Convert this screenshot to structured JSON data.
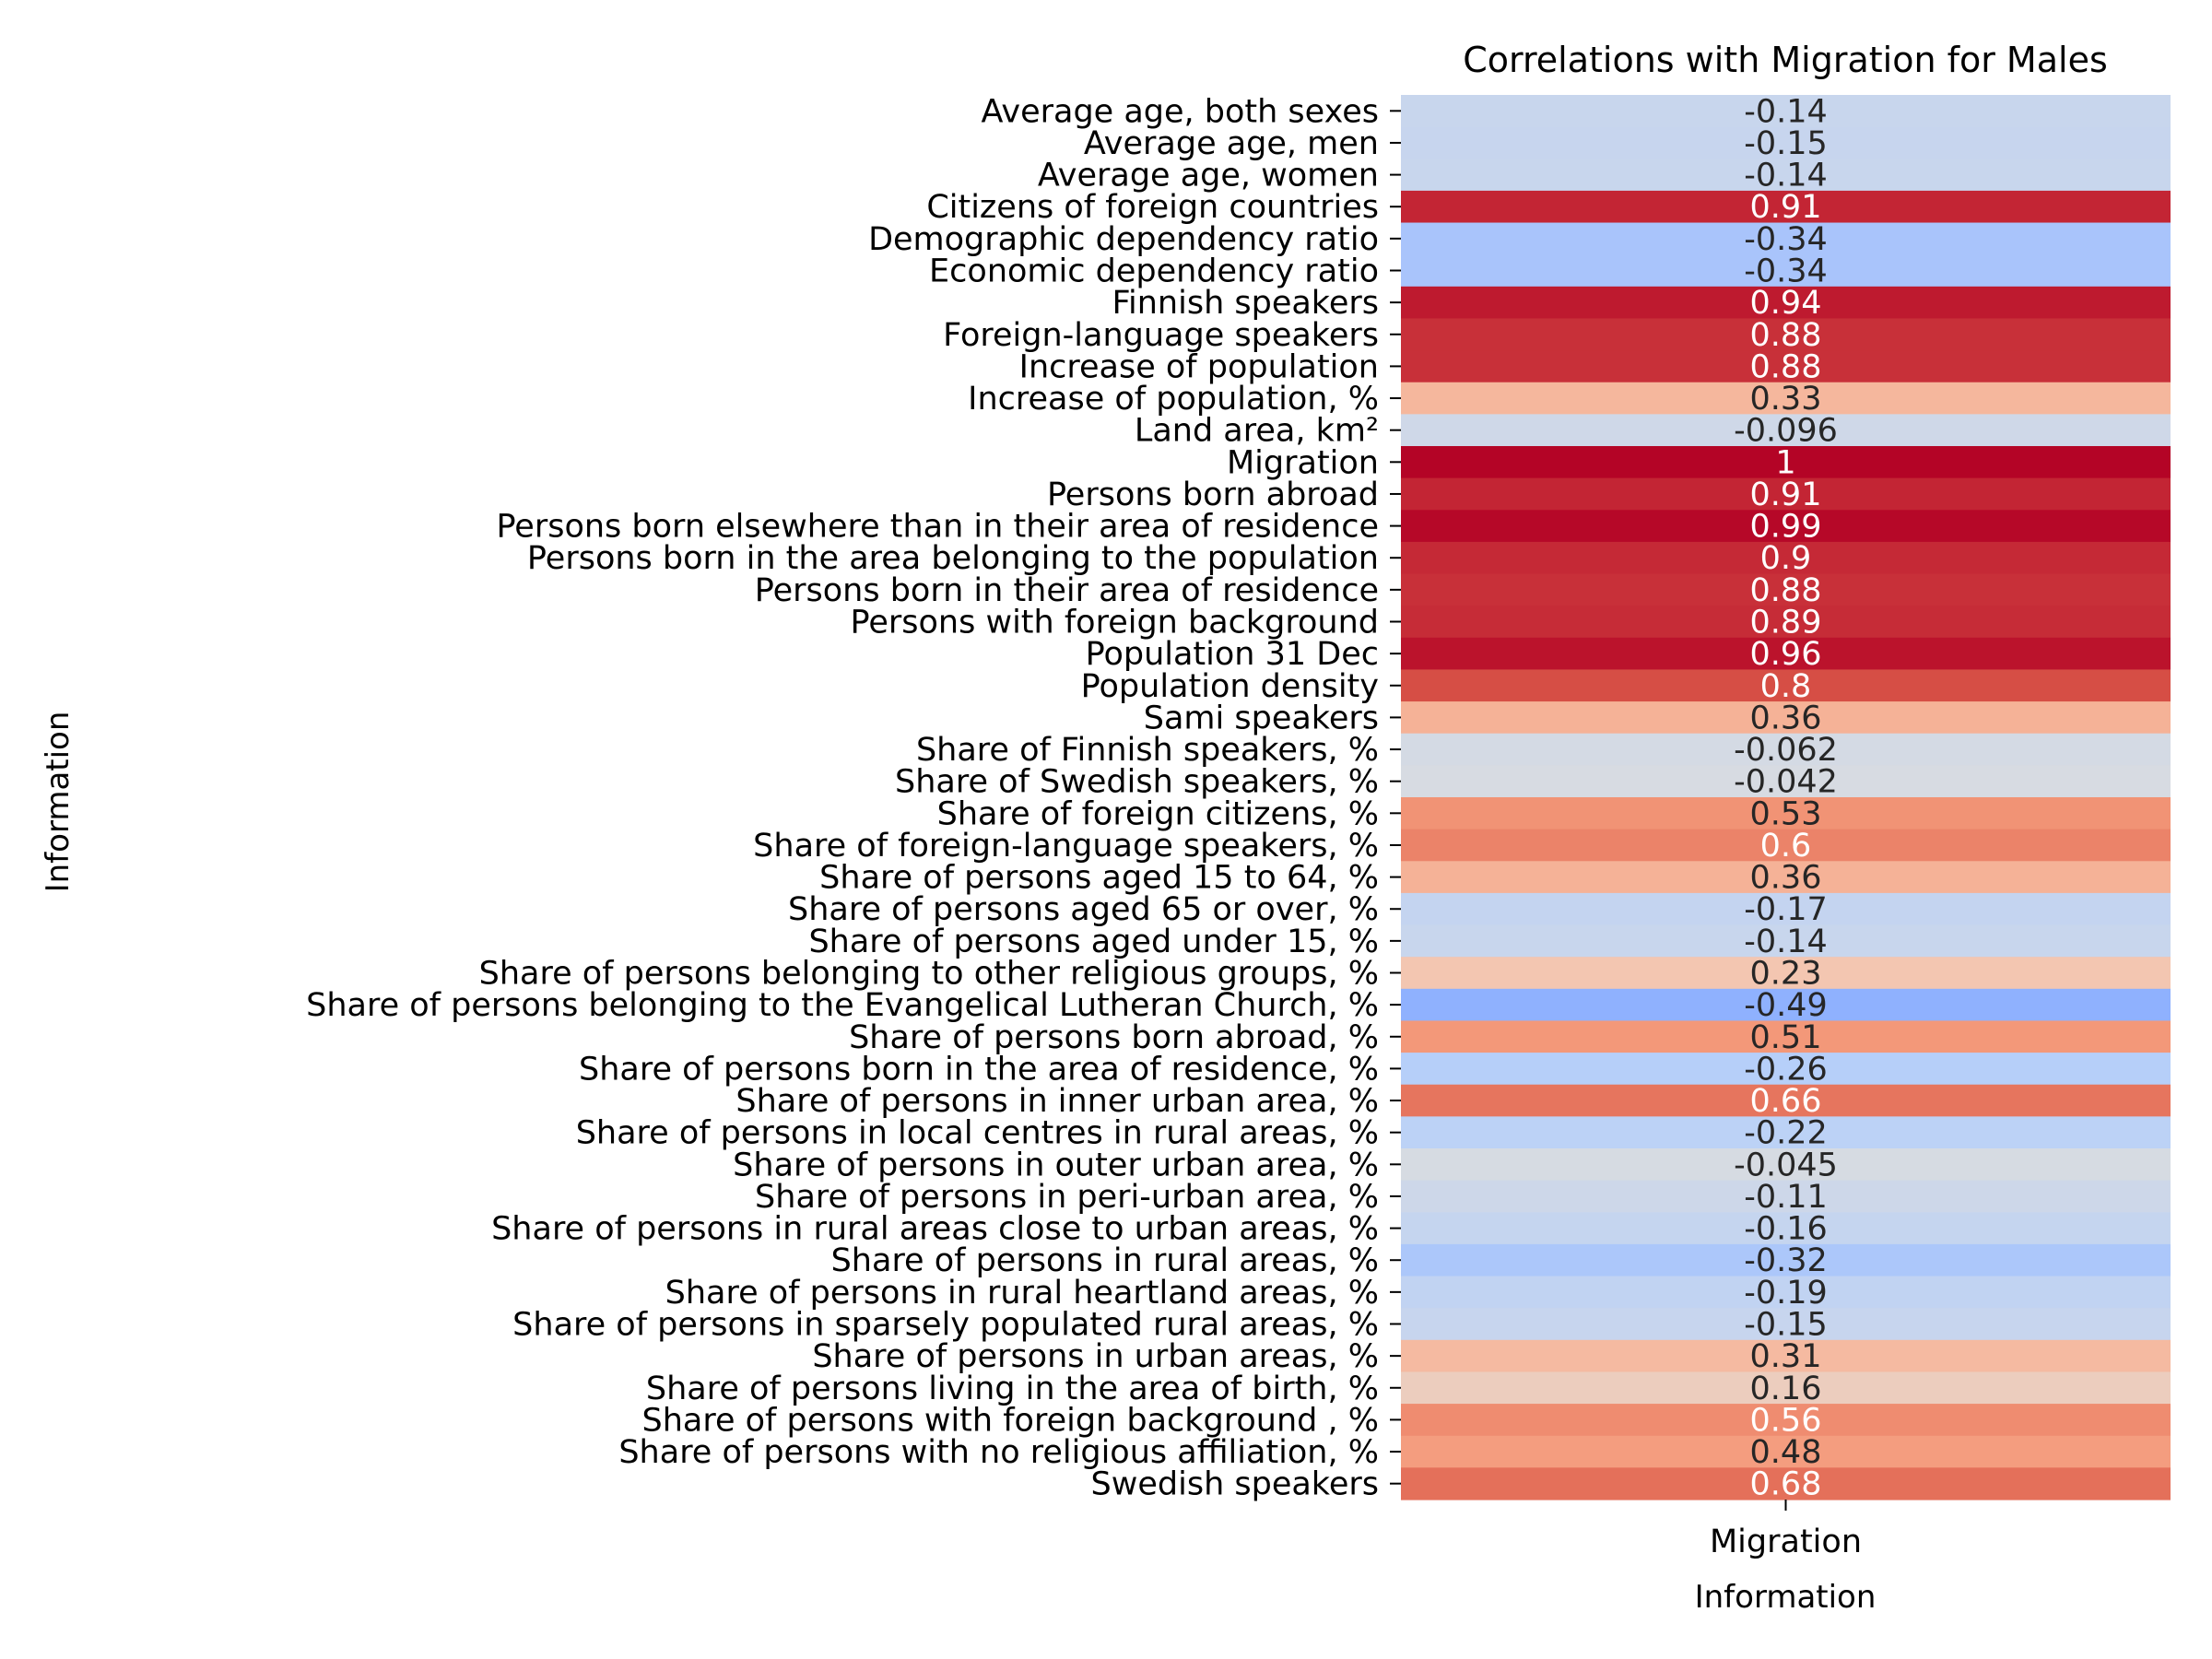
{
  "chart_data": {
    "type": "heatmap",
    "title": "Correlations with Migration for Males",
    "xlabel": "Information",
    "ylabel": "Information",
    "columns": [
      "Migration"
    ],
    "colormap": "coolwarm",
    "value_range": [
      -1,
      1
    ],
    "rows": [
      {
        "label": "Average age, both sexes",
        "value": -0.14,
        "text": "-0.14"
      },
      {
        "label": "Average age, men",
        "value": -0.15,
        "text": "-0.15"
      },
      {
        "label": "Average age, women",
        "value": -0.14,
        "text": "-0.14"
      },
      {
        "label": "Citizens of foreign countries",
        "value": 0.91,
        "text": "0.91"
      },
      {
        "label": "Demographic dependency ratio",
        "value": -0.34,
        "text": "-0.34"
      },
      {
        "label": "Economic dependency ratio",
        "value": -0.34,
        "text": "-0.34"
      },
      {
        "label": "Finnish speakers",
        "value": 0.94,
        "text": "0.94"
      },
      {
        "label": "Foreign-language speakers",
        "value": 0.88,
        "text": "0.88"
      },
      {
        "label": "Increase of population",
        "value": 0.88,
        "text": "0.88"
      },
      {
        "label": "Increase of population, %",
        "value": 0.33,
        "text": "0.33"
      },
      {
        "label": "Land area, km²",
        "value": -0.096,
        "text": "-0.096"
      },
      {
        "label": "Migration",
        "value": 1,
        "text": "1"
      },
      {
        "label": "Persons born abroad",
        "value": 0.91,
        "text": "0.91"
      },
      {
        "label": "Persons born elsewhere than in their area of residence",
        "value": 0.99,
        "text": "0.99"
      },
      {
        "label": "Persons born in the area belonging to the population",
        "value": 0.9,
        "text": "0.9"
      },
      {
        "label": "Persons born in their area of residence",
        "value": 0.88,
        "text": "0.88"
      },
      {
        "label": "Persons with foreign background",
        "value": 0.89,
        "text": "0.89"
      },
      {
        "label": "Population 31 Dec",
        "value": 0.96,
        "text": "0.96"
      },
      {
        "label": "Population density",
        "value": 0.8,
        "text": "0.8"
      },
      {
        "label": "Sami speakers",
        "value": 0.36,
        "text": "0.36"
      },
      {
        "label": "Share of Finnish speakers, %",
        "value": -0.062,
        "text": "-0.062"
      },
      {
        "label": "Share of Swedish speakers, %",
        "value": -0.042,
        "text": "-0.042"
      },
      {
        "label": "Share of foreign citizens, %",
        "value": 0.53,
        "text": "0.53"
      },
      {
        "label": "Share of foreign-language speakers, %",
        "value": 0.6,
        "text": "0.6"
      },
      {
        "label": "Share of persons aged 15 to 64, %",
        "value": 0.36,
        "text": "0.36"
      },
      {
        "label": "Share of persons aged 65 or over, %",
        "value": -0.17,
        "text": "-0.17"
      },
      {
        "label": "Share of persons aged under 15, %",
        "value": -0.14,
        "text": "-0.14"
      },
      {
        "label": "Share of persons belonging to other religious groups, %",
        "value": 0.23,
        "text": "0.23"
      },
      {
        "label": "Share of persons belonging to the Evangelical Lutheran Church, %",
        "value": -0.49,
        "text": "-0.49"
      },
      {
        "label": "Share of persons born abroad, %",
        "value": 0.51,
        "text": "0.51"
      },
      {
        "label": "Share of persons born in the area of residence, %",
        "value": -0.26,
        "text": "-0.26"
      },
      {
        "label": "Share of persons in inner urban area, %",
        "value": 0.66,
        "text": "0.66"
      },
      {
        "label": "Share of persons in local centres in rural areas, %",
        "value": -0.22,
        "text": "-0.22"
      },
      {
        "label": "Share of persons in outer urban area, %",
        "value": -0.045,
        "text": "-0.045"
      },
      {
        "label": "Share of persons in peri-urban area, %",
        "value": -0.11,
        "text": "-0.11"
      },
      {
        "label": "Share of persons in rural areas close to urban areas, %",
        "value": -0.16,
        "text": "-0.16"
      },
      {
        "label": "Share of persons in rural areas, %",
        "value": -0.32,
        "text": "-0.32"
      },
      {
        "label": "Share of persons in rural heartland areas, %",
        "value": -0.19,
        "text": "-0.19"
      },
      {
        "label": "Share of persons in sparsely populated rural areas, %",
        "value": -0.15,
        "text": "-0.15"
      },
      {
        "label": "Share of persons in urban areas, %",
        "value": 0.31,
        "text": "0.31"
      },
      {
        "label": "Share of persons living in the area of birth, %",
        "value": 0.16,
        "text": "0.16"
      },
      {
        "label": "Share of persons with foreign background , %",
        "value": 0.56,
        "text": "0.56"
      },
      {
        "label": "Share of persons with no religious affiliation, %",
        "value": 0.48,
        "text": "0.48"
      },
      {
        "label": "Swedish speakers",
        "value": 0.68,
        "text": "0.68"
      }
    ]
  }
}
